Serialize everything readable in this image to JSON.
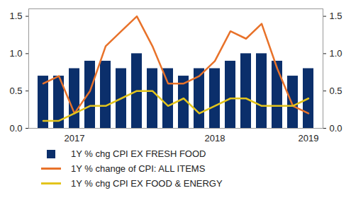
{
  "chart_data": {
    "type": "bar",
    "categories": [
      null,
      null,
      "2017",
      null,
      null,
      null,
      null,
      null,
      null,
      null,
      null,
      "2018",
      null,
      null,
      null,
      null,
      null,
      "2019"
    ],
    "series": [
      {
        "name": "1Y % chg CPI EX FRESH FOOD",
        "type": "bar",
        "color": "#0b2f6b",
        "values": [
          0.7,
          0.7,
          0.8,
          0.9,
          0.9,
          0.8,
          1.0,
          0.8,
          0.8,
          0.7,
          0.8,
          0.8,
          0.9,
          1.0,
          1.0,
          0.9,
          0.7,
          0.8
        ]
      },
      {
        "name": "1Y % change of CPI: ALL ITEMS",
        "type": "line",
        "color": "#e8722a",
        "values": [
          0.6,
          0.7,
          0.2,
          0.5,
          1.1,
          1.3,
          1.5,
          1.1,
          0.6,
          0.6,
          0.7,
          0.9,
          1.3,
          1.2,
          1.4,
          0.8,
          0.3,
          0.2
        ]
      },
      {
        "name": "1Y % chg CPI EX FOOD & ENERGY",
        "type": "line",
        "color": "#e3c41c",
        "values": [
          0.1,
          0.1,
          0.2,
          0.3,
          0.3,
          0.4,
          0.5,
          0.5,
          0.3,
          0.4,
          0.2,
          0.3,
          0.4,
          0.4,
          0.3,
          0.3,
          0.3,
          0.4
        ]
      }
    ],
    "ylim": [
      0,
      1.6
    ],
    "yticks": [
      {
        "value": 0,
        "label": "0.0"
      },
      {
        "value": 0.5,
        "label": "0.5"
      },
      {
        "value": 1,
        "label": "1.0"
      },
      {
        "value": 1.5,
        "label": "1.5"
      }
    ]
  }
}
